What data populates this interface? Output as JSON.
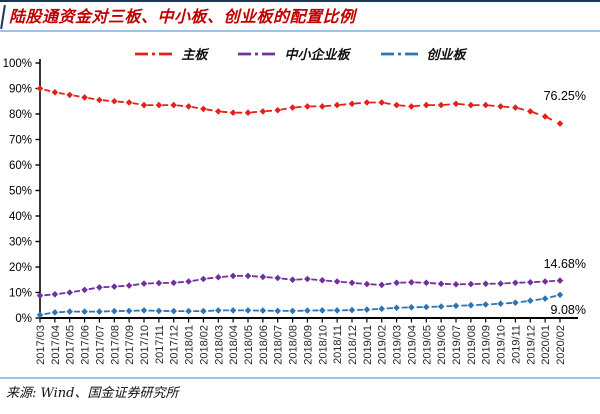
{
  "header": {
    "title": "陆股通资金对三板、中小板、创业板的配置比例"
  },
  "footer": {
    "source": "来源: Wind、国金证券研究所"
  },
  "colors": {
    "top_rule": "#16365c",
    "divider": "#9dc3e6",
    "title": "#c00000",
    "axis": "#000000",
    "main_board": "#e3211b",
    "sme_board": "#7030a0",
    "chinext_board": "#2e75b6"
  },
  "chart_data": {
    "type": "line",
    "line_style": "dash-dot",
    "marker": "diamond",
    "grid": false,
    "legend_position": "top",
    "ylim": [
      0,
      100
    ],
    "ytick_step": 10,
    "ytick_format": "percent",
    "x": [
      "2017/03",
      "2017/04",
      "2017/05",
      "2017/06",
      "2017/07",
      "2017/08",
      "2017/09",
      "2017/10",
      "2017/11",
      "2017/12",
      "2018/01",
      "2018/02",
      "2018/03",
      "2018/04",
      "2018/05",
      "2018/06",
      "2018/07",
      "2018/08",
      "2018/09",
      "2018/10",
      "2018/11",
      "2018/12",
      "2019/01",
      "2019/02",
      "2019/03",
      "2019/04",
      "2019/05",
      "2019/06",
      "2019/07",
      "2019/08",
      "2019/09",
      "2019/10",
      "2019/11",
      "2019/12",
      "2020/01",
      "2020/02"
    ],
    "series": [
      {
        "id": "main-board",
        "name": "主板",
        "color": "#e3211b",
        "end_label": "76.25%",
        "values": [
          90.0,
          88.5,
          87.5,
          86.5,
          85.5,
          85.0,
          84.5,
          83.5,
          83.5,
          83.5,
          83.0,
          82.0,
          81.0,
          80.5,
          80.5,
          81.0,
          81.5,
          82.5,
          83.0,
          83.0,
          83.5,
          84.0,
          84.5,
          84.5,
          83.5,
          83.0,
          83.5,
          83.5,
          84.0,
          83.5,
          83.5,
          83.0,
          82.5,
          81.0,
          79.0,
          76.25
        ]
      },
      {
        "id": "sme-board",
        "name": "中小企业板",
        "color": "#7030a0",
        "end_label": "14.68%",
        "values": [
          8.8,
          9.3,
          10.0,
          11.0,
          12.0,
          12.3,
          12.7,
          13.5,
          13.7,
          13.8,
          14.3,
          15.3,
          16.0,
          16.5,
          16.5,
          16.1,
          15.7,
          15.0,
          15.3,
          14.8,
          14.3,
          13.8,
          13.3,
          13.0,
          13.8,
          14.0,
          13.8,
          13.4,
          13.2,
          13.3,
          13.4,
          13.5,
          13.8,
          14.0,
          14.3,
          14.68
        ]
      },
      {
        "id": "chinext-board",
        "name": "创业板",
        "color": "#2e75b6",
        "end_label": "9.08%",
        "values": [
          1.2,
          2.2,
          2.5,
          2.5,
          2.5,
          2.7,
          2.8,
          3.0,
          2.8,
          2.7,
          2.7,
          2.7,
          3.0,
          3.0,
          3.0,
          2.9,
          2.8,
          2.8,
          2.9,
          3.0,
          3.0,
          3.1,
          3.3,
          3.6,
          4.0,
          4.2,
          4.3,
          4.5,
          4.8,
          5.0,
          5.3,
          5.6,
          6.0,
          6.8,
          7.6,
          9.08
        ]
      }
    ]
  }
}
